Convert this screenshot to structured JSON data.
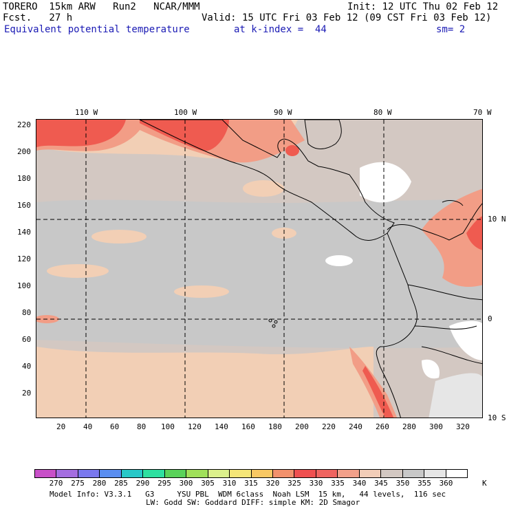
{
  "header": {
    "line1_left": "TORERO  15km ARW   Run2   NCAR/MMM",
    "line1_right": "Init: 12 UTC Thu 02 Feb 12",
    "line2_left": "Fcst.   27 h",
    "line2_right": "Valid: 15 UTC Fri 03 Feb 12 (09 CST Fri 03 Feb 12)",
    "field_name": "Equivalent potential temperature",
    "level": "at k-index =  44",
    "smoothing": "sm= 2"
  },
  "map": {
    "top_lon_labels": [
      "110 W",
      "100 W",
      "90 W",
      "80 W",
      "70 W"
    ],
    "right_lat_labels": [
      "10 N",
      "0",
      "10 S"
    ],
    "left_grid_labels": [
      "220",
      "200",
      "180",
      "160",
      "140",
      "120",
      "100",
      "80",
      "60",
      "40",
      "20"
    ],
    "bottom_grid_labels": [
      "20",
      "40",
      "60",
      "80",
      "100",
      "120",
      "140",
      "160",
      "180",
      "200",
      "220",
      "240",
      "260",
      "280",
      "300",
      "320"
    ],
    "colors": {
      "ocean_base": "#d3c8c2",
      "cool_gray": "#c8c8c8",
      "peach": "#f2cfb5",
      "salmon": "#f29d86",
      "red": "#ef5b50",
      "white": "#ffffff",
      "gridline": "#000000"
    }
  },
  "colorbar": {
    "labels": [
      "270",
      "275",
      "280",
      "285",
      "290",
      "295",
      "300",
      "305",
      "310",
      "315",
      "320",
      "325",
      "330",
      "335",
      "340",
      "345",
      "350",
      "355",
      "360"
    ],
    "unit": "K",
    "colors": [
      "#c850c8",
      "#a46ee0",
      "#7a78ee",
      "#5a8ef0",
      "#28c8c8",
      "#2ee0a0",
      "#5ad25a",
      "#a0e05a",
      "#dcf08c",
      "#f5e678",
      "#f8c864",
      "#f2916c",
      "#ef5050",
      "#ef6460",
      "#f2a08a",
      "#f2cdb8",
      "#d3c8c2",
      "#c8c8c8",
      "#e6e6e6",
      "#ffffff"
    ]
  },
  "footer": {
    "line1": "Model Info: V3.3.1   G3     YSU PBL  WDM 6class  Noah LSM  15 km,   44 levels,  116 sec",
    "line2": "LW: Godd SW: Goddard DIFF: simple KM: 2D Smagor"
  }
}
